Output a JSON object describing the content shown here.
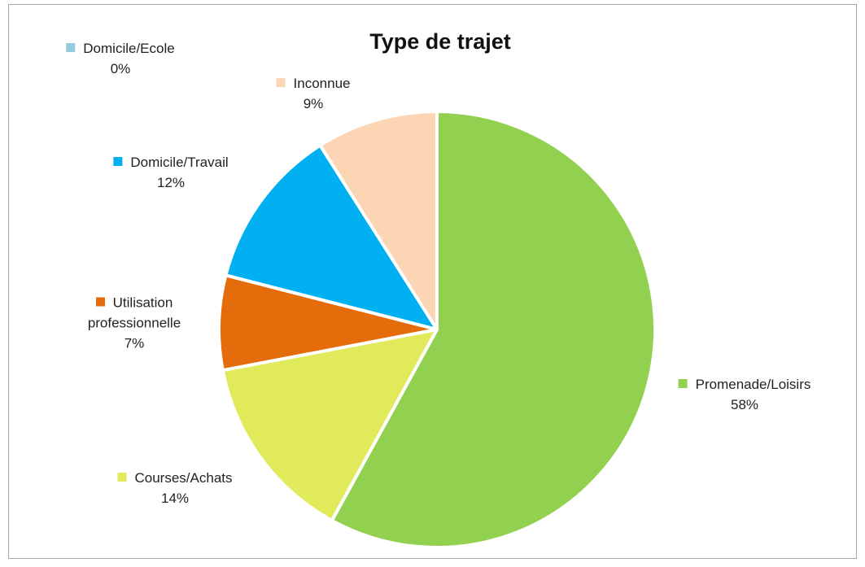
{
  "chart_data": {
    "type": "pie",
    "title": "Type de trajet",
    "categories": [
      "Promenade/Loisirs",
      "Courses/Achats",
      "Utilisation professionnelle",
      "Domicile/Travail",
      "Inconnue",
      "Domicile/Ecole"
    ],
    "values": [
      58,
      14,
      7,
      12,
      9,
      0
    ],
    "value_labels": [
      "58%",
      "14%",
      "7%",
      "12%",
      "9%",
      "0%"
    ],
    "colors": [
      "#92d050",
      "#e0ea5a",
      "#e46c0a",
      "#00b0f0",
      "#fcd5b5",
      "#93cddd"
    ]
  }
}
